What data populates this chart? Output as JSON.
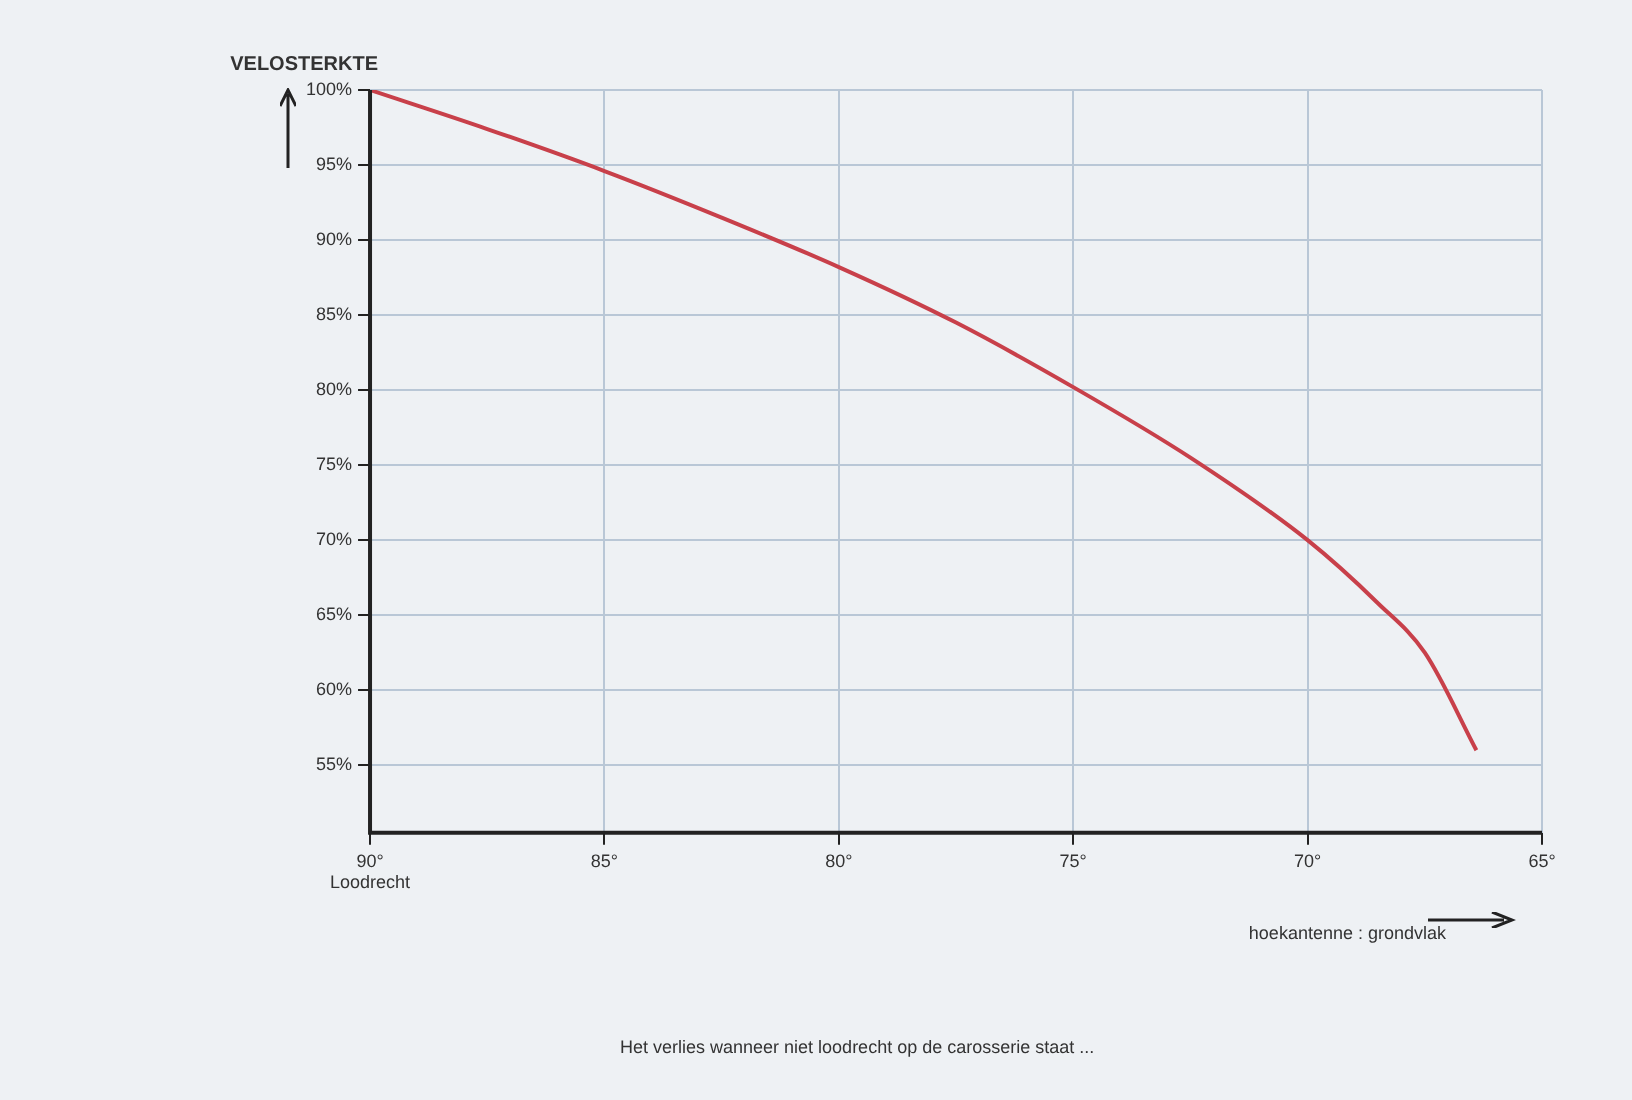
{
  "chart_data": {
    "type": "line",
    "ylabel": "VELOSTERKTE",
    "xlabel": "hoekantenne : grondvlak",
    "annotations": [
      "Het verlies wanneer niet loodrecht op de carosserie staat ..."
    ],
    "x": [
      90,
      87.5,
      85,
      82.5,
      80,
      77.5,
      75,
      72.5,
      70,
      68.5,
      67.5,
      66.4
    ],
    "series": [
      {
        "color": "#c8404a",
        "values": [
          100,
          97.4,
          94.6,
          91.5,
          88.2,
          84.5,
          80.2,
          75.5,
          70,
          65.8,
          62.5,
          56
        ]
      }
    ],
    "xlim": [
      90,
      65
    ],
    "xticks": [
      {
        "value": 90,
        "label": "90°\nLoodrecht"
      },
      {
        "value": 85,
        "label": "85°"
      },
      {
        "value": 80,
        "label": "80°"
      },
      {
        "value": 75,
        "label": "75°"
      },
      {
        "value": 70,
        "label": "70°"
      },
      {
        "value": 65,
        "label": "65°"
      }
    ],
    "ylim": [
      50.5,
      100
    ],
    "yticks": [
      {
        "value": 55,
        "label": "55%"
      },
      {
        "value": 60,
        "label": "60%"
      },
      {
        "value": 65,
        "label": "65%"
      },
      {
        "value": 70,
        "label": "70%"
      },
      {
        "value": 75,
        "label": "75%"
      },
      {
        "value": 80,
        "label": "80%"
      },
      {
        "value": 85,
        "label": "85%"
      },
      {
        "value": 90,
        "label": "90%"
      },
      {
        "value": 95,
        "label": "95%"
      },
      {
        "value": 100,
        "label": "100%"
      }
    ],
    "grid": true,
    "marker": "none",
    "line_style": "solid",
    "legend": false
  }
}
